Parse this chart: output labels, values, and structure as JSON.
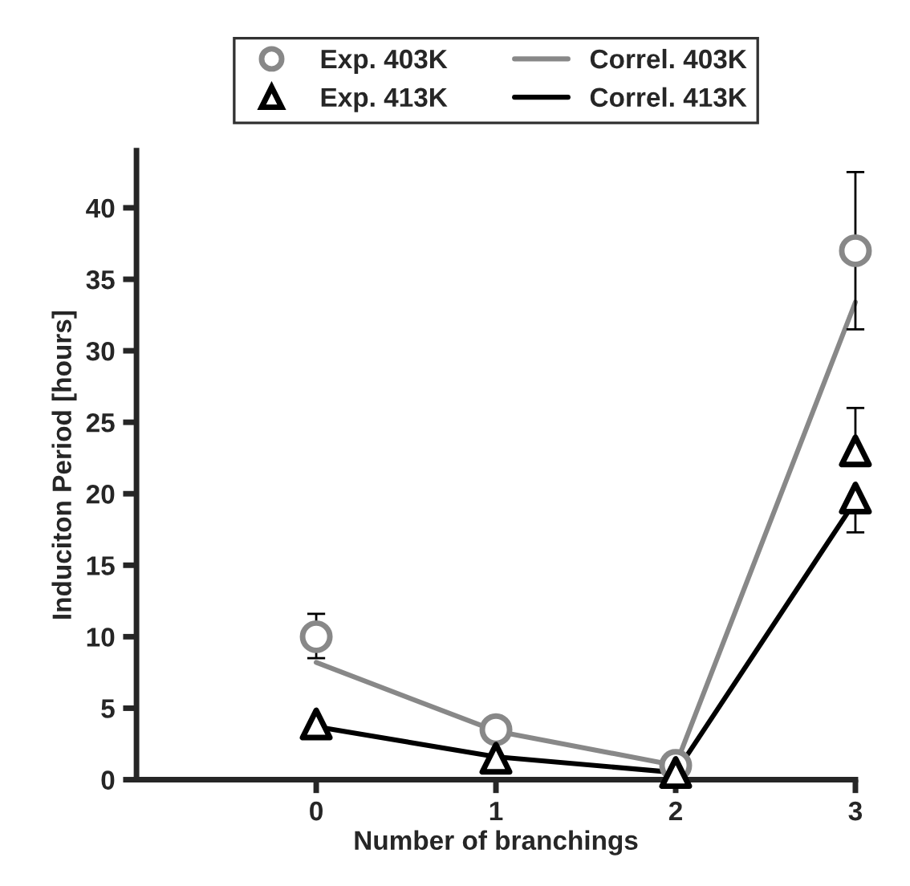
{
  "chart_data": {
    "type": "line",
    "xlabel": "Number of branchings",
    "ylabel": "Induciton Period [hours]",
    "xlim": [
      -1,
      3
    ],
    "xticks": [
      0,
      1,
      2,
      3
    ],
    "ylim": [
      0,
      44
    ],
    "yticks": [
      0,
      5,
      10,
      15,
      20,
      25,
      30,
      35,
      40
    ],
    "grid": false,
    "legend": "top",
    "series": [
      {
        "name": "Exp. 403K",
        "type": "scatter",
        "marker": "circle",
        "color": "#888888",
        "x": [
          0,
          1,
          2,
          3
        ],
        "values": [
          10,
          3.5,
          1.0,
          37
        ],
        "errors": [
          [
            8.5,
            11.6
          ],
          [
            3.0,
            4.0
          ],
          null,
          [
            31.5,
            42.5
          ]
        ]
      },
      {
        "name": "Correl. 403K",
        "marker": "none",
        "color": "#888888",
        "x": [
          0,
          1,
          2,
          3
        ],
        "values": [
          8.2,
          3.4,
          1.0,
          33.4
        ]
      },
      {
        "name": "Exp. 413K",
        "type": "scatter",
        "marker": "triangle",
        "color": "#000000",
        "x": [
          0,
          1,
          2,
          3,
          3
        ],
        "values": [
          3.9,
          1.5,
          0.5,
          23,
          19.7
        ],
        "errors": [
          null,
          null,
          null,
          [
            23,
            26
          ],
          [
            17.3,
            19.7
          ]
        ]
      },
      {
        "name": "Correl. 413K",
        "marker": "none",
        "color": "#000000",
        "x": [
          0,
          1,
          2,
          3
        ],
        "values": [
          3.7,
          1.6,
          0.5,
          19.5
        ]
      }
    ]
  }
}
